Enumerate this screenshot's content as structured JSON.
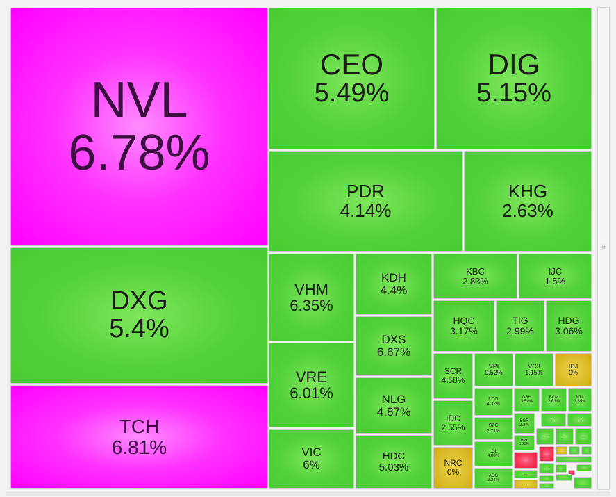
{
  "colors": {
    "up": "#52d13a",
    "ceiling": "#ff00ff",
    "reference": "#d9b824",
    "down": "#f33355"
  },
  "tiles": [
    {
      "symbol": "NVL",
      "change": "6.78%",
      "color": "purple"
    },
    {
      "symbol": "CEO",
      "change": "5.49%",
      "color": "green"
    },
    {
      "symbol": "DIG",
      "change": "5.15%",
      "color": "green"
    },
    {
      "symbol": "PDR",
      "change": "4.14%",
      "color": "green"
    },
    {
      "symbol": "KHG",
      "change": "2.63%",
      "color": "green"
    },
    {
      "symbol": "DXG",
      "change": "5.4%",
      "color": "green"
    },
    {
      "symbol": "TCH",
      "change": "6.81%",
      "color": "purple"
    },
    {
      "symbol": "VHM",
      "change": "6.35%",
      "color": "green"
    },
    {
      "symbol": "KDH",
      "change": "4.4%",
      "color": "green"
    },
    {
      "symbol": "DXS",
      "change": "6.67%",
      "color": "green"
    },
    {
      "symbol": "VRE",
      "change": "6.01%",
      "color": "green"
    },
    {
      "symbol": "NLG",
      "change": "4.87%",
      "color": "green"
    },
    {
      "symbol": "VIC",
      "change": "6%",
      "color": "green"
    },
    {
      "symbol": "HDC",
      "change": "5.03%",
      "color": "green"
    },
    {
      "symbol": "KBC",
      "change": "2.83%",
      "color": "green"
    },
    {
      "symbol": "IJC",
      "change": "1.5%",
      "color": "green"
    },
    {
      "symbol": "HQC",
      "change": "3.17%",
      "color": "green"
    },
    {
      "symbol": "TIG",
      "change": "2.99%",
      "color": "green"
    },
    {
      "symbol": "HDG",
      "change": "3.06%",
      "color": "green"
    },
    {
      "symbol": "SCR",
      "change": "4.58%",
      "color": "green"
    },
    {
      "symbol": "VPI",
      "change": "0.52%",
      "color": "green"
    },
    {
      "symbol": "VC3",
      "change": "1.15%",
      "color": "green"
    },
    {
      "symbol": "IDJ",
      "change": "0%",
      "color": "yellow"
    },
    {
      "symbol": "LDG",
      "change": "4.32%",
      "color": "green"
    },
    {
      "symbol": "DRH",
      "change": "3.59%",
      "color": "green"
    },
    {
      "symbol": "BCM",
      "change": "2.63%",
      "color": "green"
    },
    {
      "symbol": "NTL",
      "change": "2.85%",
      "color": "green"
    },
    {
      "symbol": "IDC",
      "change": "2.55%",
      "color": "green"
    },
    {
      "symbol": "SZC",
      "change": "2.71%",
      "color": "green"
    },
    {
      "symbol": "SGR",
      "change": "2.3%",
      "color": "green"
    },
    {
      "symbol": "HPX",
      "change": "1.28%",
      "color": "green"
    },
    {
      "symbol": "NRC",
      "change": "0%",
      "color": "yellow"
    },
    {
      "symbol": "LGL",
      "change": "4.88%",
      "color": "green"
    },
    {
      "symbol": "AGG",
      "change": "3.24%",
      "color": "green"
    },
    {
      "symbol": "...",
      "change": "",
      "color": "green"
    },
    {
      "symbol": "...",
      "change": "",
      "color": "green"
    },
    {
      "symbol": "...",
      "change": "",
      "color": "green"
    },
    {
      "symbol": "...",
      "change": "",
      "color": "green"
    },
    {
      "symbol": "...",
      "change": "",
      "color": "green"
    },
    {
      "symbol": "...",
      "change": "",
      "color": "red"
    },
    {
      "symbol": "...",
      "change": "",
      "color": "red"
    },
    {
      "symbol": "",
      "change": "",
      "color": "yellow"
    },
    {
      "symbol": "",
      "change": "",
      "color": "green"
    },
    {
      "symbol": "",
      "change": "",
      "color": "green"
    },
    {
      "symbol": "",
      "change": "",
      "color": "green"
    },
    {
      "symbol": "...",
      "change": "",
      "color": "green"
    },
    {
      "symbol": "...",
      "change": "",
      "color": "green"
    },
    {
      "symbol": "...",
      "change": "",
      "color": "yellow"
    },
    {
      "symbol": "",
      "change": "",
      "color": "green"
    },
    {
      "symbol": "",
      "change": "",
      "color": "red"
    },
    {
      "symbol": "",
      "change": "",
      "color": "green"
    },
    {
      "symbol": "",
      "change": "",
      "color": "green"
    },
    {
      "symbol": "",
      "change": "",
      "color": "green"
    },
    {
      "symbol": "",
      "change": "",
      "color": "green"
    },
    {
      "symbol": "",
      "change": "",
      "color": "green"
    }
  ],
  "scrollbar": {
    "grip_glyph": "⠿"
  }
}
